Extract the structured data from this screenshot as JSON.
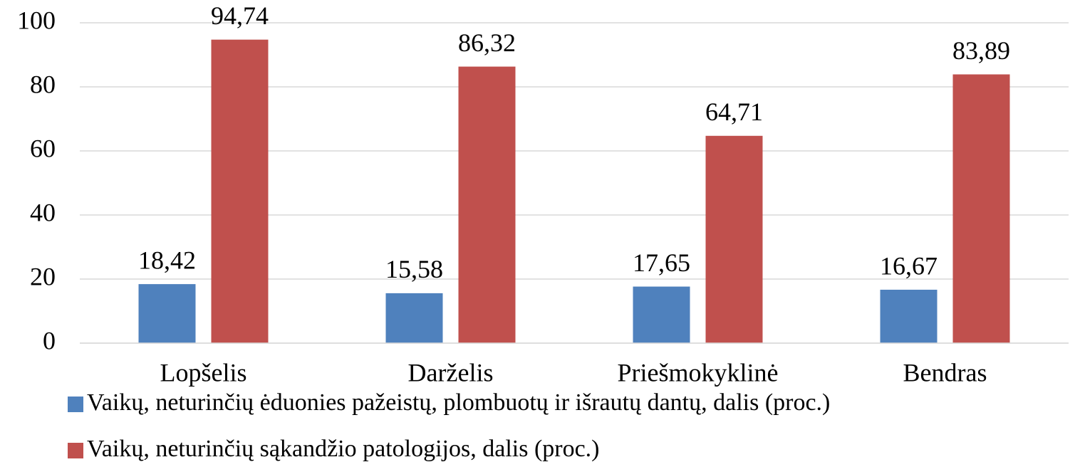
{
  "chart_data": {
    "type": "bar",
    "categories": [
      "Lopšelis",
      "Darželis",
      "Priešmokyklinė",
      "Bendras"
    ],
    "series": [
      {
        "name": "Vaikų, neturinčių ėduonies pažeistų, plombuotų ir išrautų dantų, dalis (proc.)",
        "color": "#4f81bd",
        "values": [
          18.42,
          15.58,
          17.65,
          16.67
        ],
        "value_labels": [
          "18,42",
          "15,58",
          "17,65",
          "16,67"
        ]
      },
      {
        "name": "Vaikų, neturinčių sąkandžio patologijos, dalis (proc.)",
        "color": "#c0504d",
        "values": [
          94.74,
          86.32,
          64.71,
          83.89
        ],
        "value_labels": [
          "94,74",
          "86,32",
          "64,71",
          "83,89"
        ]
      }
    ],
    "ylim": [
      0,
      100
    ],
    "yticks": [
      0,
      20,
      40,
      60,
      80,
      100
    ],
    "grid": true,
    "legend": "bottom"
  }
}
